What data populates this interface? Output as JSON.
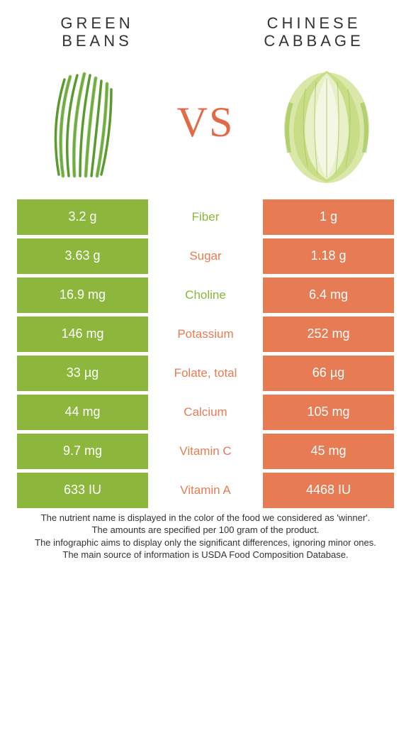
{
  "colors": {
    "left": "#8cb63c",
    "right": "#e77b54",
    "vs": "#e46a47"
  },
  "left_food": {
    "name_line1": "GREEN",
    "name_line2": "BEANS"
  },
  "right_food": {
    "name_line1": "CHINESE",
    "name_line2": "CABBAGE"
  },
  "vs_label": "VS",
  "rows": [
    {
      "label": "Fiber",
      "left": "3.2 g",
      "right": "1 g",
      "winner": "left"
    },
    {
      "label": "Sugar",
      "left": "3.63 g",
      "right": "1.18 g",
      "winner": "right"
    },
    {
      "label": "Choline",
      "left": "16.9 mg",
      "right": "6.4 mg",
      "winner": "left"
    },
    {
      "label": "Potassium",
      "left": "146 mg",
      "right": "252 mg",
      "winner": "right"
    },
    {
      "label": "Folate, total",
      "left": "33 µg",
      "right": "66 µg",
      "winner": "right"
    },
    {
      "label": "Calcium",
      "left": "44 mg",
      "right": "105 mg",
      "winner": "right"
    },
    {
      "label": "Vitamin C",
      "left": "9.7 mg",
      "right": "45 mg",
      "winner": "right"
    },
    {
      "label": "Vitamin A",
      "left": "633 IU",
      "right": "4468 IU",
      "winner": "right"
    }
  ],
  "footer": {
    "line1": "The nutrient name is displayed in the color of the food we considered as 'winner'.",
    "line2": "The amounts are specified per 100 gram of the product.",
    "line3": "The infographic aims to display only the significant differences, ignoring minor ones.",
    "line4": "The main source of information is USDA Food Composition Database."
  }
}
